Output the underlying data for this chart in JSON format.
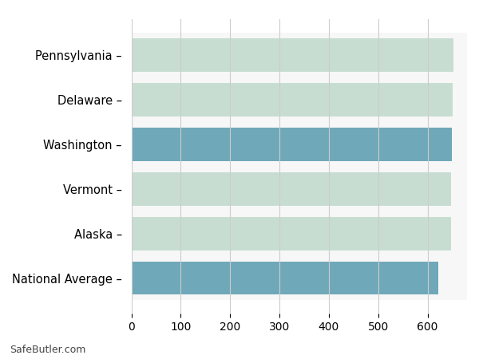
{
  "categories": [
    "Pennsylvania",
    "Delaware",
    "Washington",
    "Vermont",
    "Alaska",
    "National Average"
  ],
  "values": [
    652,
    651,
    650,
    648,
    647,
    621
  ],
  "bar_colors": [
    "#c8ddd2",
    "#c8ddd2",
    "#6fa8b8",
    "#c8ddd2",
    "#c8ddd2",
    "#6fa8b8"
  ],
  "row_bg_color": "#eeeeee",
  "background_color": "#ffffff",
  "grid_color": "#cccccc",
  "xlim": [
    0,
    680
  ],
  "xticks": [
    0,
    100,
    200,
    300,
    400,
    500,
    600
  ],
  "footer_text": "SafeButler.com",
  "bar_height": 0.75,
  "label_suffix": " –"
}
